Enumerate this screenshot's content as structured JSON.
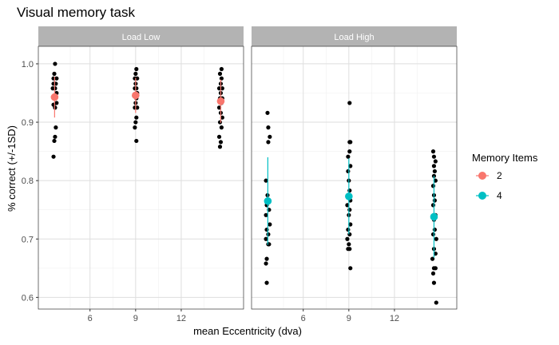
{
  "chart_data": {
    "type": "scatter",
    "title": "Visual memory task",
    "xlabel": "mean Eccentricity (dva)",
    "ylabel": "% correct (+/-1SD)",
    "xlim": [
      2.6,
      16.1
    ],
    "ylim": [
      0.58,
      1.03
    ],
    "xticks": [
      6,
      9,
      12
    ],
    "yticks": [
      0.6,
      0.7,
      0.8,
      0.9,
      1.0
    ],
    "ytick_labels": [
      "0.6",
      "0.7",
      "0.8",
      "0.9",
      "1.0"
    ],
    "grid": true,
    "legend": {
      "title": "Memory Items",
      "placement": "right",
      "entries": [
        {
          "label": "2",
          "color": "#F8766D"
        },
        {
          "label": "4",
          "color": "#00BFC4"
        }
      ]
    },
    "panels": [
      {
        "label": "Load Low",
        "points": [
          {
            "x": 3.6,
            "y": 0.841
          },
          {
            "x": 3.65,
            "y": 0.868
          },
          {
            "x": 3.7,
            "y": 0.875
          },
          {
            "x": 3.75,
            "y": 0.891
          },
          {
            "x": 3.7,
            "y": 0.925
          },
          {
            "x": 3.6,
            "y": 0.93
          },
          {
            "x": 3.8,
            "y": 0.933
          },
          {
            "x": 3.65,
            "y": 0.945
          },
          {
            "x": 3.8,
            "y": 0.95
          },
          {
            "x": 3.55,
            "y": 0.958
          },
          {
            "x": 3.7,
            "y": 0.958
          },
          {
            "x": 3.6,
            "y": 0.966
          },
          {
            "x": 3.75,
            "y": 0.966
          },
          {
            "x": 3.6,
            "y": 0.975
          },
          {
            "x": 3.8,
            "y": 0.975
          },
          {
            "x": 3.65,
            "y": 0.983
          },
          {
            "x": 3.7,
            "y": 1.0
          },
          {
            "x": 9.05,
            "y": 0.868
          },
          {
            "x": 8.95,
            "y": 0.891
          },
          {
            "x": 9.0,
            "y": 0.9
          },
          {
            "x": 9.05,
            "y": 0.908
          },
          {
            "x": 8.95,
            "y": 0.925
          },
          {
            "x": 9.1,
            "y": 0.925
          },
          {
            "x": 9.0,
            "y": 0.933
          },
          {
            "x": 9.05,
            "y": 0.941
          },
          {
            "x": 8.9,
            "y": 0.945
          },
          {
            "x": 9.1,
            "y": 0.95
          },
          {
            "x": 8.95,
            "y": 0.958
          },
          {
            "x": 9.05,
            "y": 0.958
          },
          {
            "x": 9.0,
            "y": 0.966
          },
          {
            "x": 8.95,
            "y": 0.975
          },
          {
            "x": 9.1,
            "y": 0.975
          },
          {
            "x": 9.0,
            "y": 0.983
          },
          {
            "x": 9.05,
            "y": 0.991
          },
          {
            "x": 14.55,
            "y": 0.858
          },
          {
            "x": 14.6,
            "y": 0.866
          },
          {
            "x": 14.5,
            "y": 0.875
          },
          {
            "x": 14.65,
            "y": 0.891
          },
          {
            "x": 14.55,
            "y": 0.9
          },
          {
            "x": 14.7,
            "y": 0.908
          },
          {
            "x": 14.6,
            "y": 0.916
          },
          {
            "x": 14.5,
            "y": 0.925
          },
          {
            "x": 14.65,
            "y": 0.933
          },
          {
            "x": 14.55,
            "y": 0.941
          },
          {
            "x": 14.7,
            "y": 0.941
          },
          {
            "x": 14.6,
            "y": 0.95
          },
          {
            "x": 14.5,
            "y": 0.958
          },
          {
            "x": 14.7,
            "y": 0.958
          },
          {
            "x": 14.6,
            "y": 0.966
          },
          {
            "x": 14.65,
            "y": 0.975
          },
          {
            "x": 14.55,
            "y": 0.983
          },
          {
            "x": 14.65,
            "y": 0.991
          }
        ],
        "means": [
          {
            "x": 3.67,
            "y": 0.943,
            "sd": 0.035
          },
          {
            "x": 9.0,
            "y": 0.946,
            "sd": 0.03
          },
          {
            "x": 14.6,
            "y": 0.936,
            "sd": 0.037
          }
        ],
        "mean_color": "#F8766D"
      },
      {
        "label": "Load High",
        "points": [
          {
            "x": 3.6,
            "y": 0.625
          },
          {
            "x": 3.55,
            "y": 0.658
          },
          {
            "x": 3.6,
            "y": 0.666
          },
          {
            "x": 3.7,
            "y": 0.691
          },
          {
            "x": 3.75,
            "y": 0.691
          },
          {
            "x": 3.55,
            "y": 0.7
          },
          {
            "x": 3.7,
            "y": 0.708
          },
          {
            "x": 3.6,
            "y": 0.716
          },
          {
            "x": 3.8,
            "y": 0.725
          },
          {
            "x": 3.55,
            "y": 0.741
          },
          {
            "x": 3.75,
            "y": 0.75
          },
          {
            "x": 3.6,
            "y": 0.758
          },
          {
            "x": 3.7,
            "y": 0.766
          },
          {
            "x": 3.65,
            "y": 0.775
          },
          {
            "x": 3.55,
            "y": 0.8
          },
          {
            "x": 3.7,
            "y": 0.866
          },
          {
            "x": 3.8,
            "y": 0.875
          },
          {
            "x": 3.7,
            "y": 0.891
          },
          {
            "x": 3.65,
            "y": 0.916
          },
          {
            "x": 9.1,
            "y": 0.65
          },
          {
            "x": 8.95,
            "y": 0.683
          },
          {
            "x": 9.05,
            "y": 0.683
          },
          {
            "x": 9.0,
            "y": 0.691
          },
          {
            "x": 8.9,
            "y": 0.7
          },
          {
            "x": 9.05,
            "y": 0.708
          },
          {
            "x": 8.95,
            "y": 0.716
          },
          {
            "x": 9.1,
            "y": 0.725
          },
          {
            "x": 9.0,
            "y": 0.741
          },
          {
            "x": 9.05,
            "y": 0.75
          },
          {
            "x": 8.9,
            "y": 0.758
          },
          {
            "x": 9.1,
            "y": 0.766
          },
          {
            "x": 8.95,
            "y": 0.775
          },
          {
            "x": 9.05,
            "y": 0.783
          },
          {
            "x": 9.0,
            "y": 0.8
          },
          {
            "x": 8.95,
            "y": 0.816
          },
          {
            "x": 9.1,
            "y": 0.825
          },
          {
            "x": 8.95,
            "y": 0.841
          },
          {
            "x": 9.05,
            "y": 0.85
          },
          {
            "x": 9.05,
            "y": 0.866
          },
          {
            "x": 9.1,
            "y": 0.866
          },
          {
            "x": 9.05,
            "y": 0.933
          },
          {
            "x": 14.75,
            "y": 0.591
          },
          {
            "x": 14.6,
            "y": 0.625
          },
          {
            "x": 14.55,
            "y": 0.641
          },
          {
            "x": 14.6,
            "y": 0.65
          },
          {
            "x": 14.7,
            "y": 0.65
          },
          {
            "x": 14.5,
            "y": 0.666
          },
          {
            "x": 14.7,
            "y": 0.675
          },
          {
            "x": 14.6,
            "y": 0.683
          },
          {
            "x": 14.75,
            "y": 0.7
          },
          {
            "x": 14.55,
            "y": 0.708
          },
          {
            "x": 14.65,
            "y": 0.716
          },
          {
            "x": 14.6,
            "y": 0.733
          },
          {
            "x": 14.7,
            "y": 0.741
          },
          {
            "x": 14.55,
            "y": 0.758
          },
          {
            "x": 14.65,
            "y": 0.766
          },
          {
            "x": 14.6,
            "y": 0.775
          },
          {
            "x": 14.55,
            "y": 0.791
          },
          {
            "x": 14.7,
            "y": 0.8
          },
          {
            "x": 14.6,
            "y": 0.808
          },
          {
            "x": 14.65,
            "y": 0.816
          },
          {
            "x": 14.6,
            "y": 0.825
          },
          {
            "x": 14.7,
            "y": 0.833
          },
          {
            "x": 14.6,
            "y": 0.841
          },
          {
            "x": 14.55,
            "y": 0.85
          }
        ],
        "means": [
          {
            "x": 3.67,
            "y": 0.765,
            "sd": 0.075
          },
          {
            "x": 9.0,
            "y": 0.773,
            "sd": 0.065
          },
          {
            "x": 14.6,
            "y": 0.738,
            "sd": 0.07
          }
        ],
        "mean_color": "#00BFC4"
      }
    ]
  }
}
